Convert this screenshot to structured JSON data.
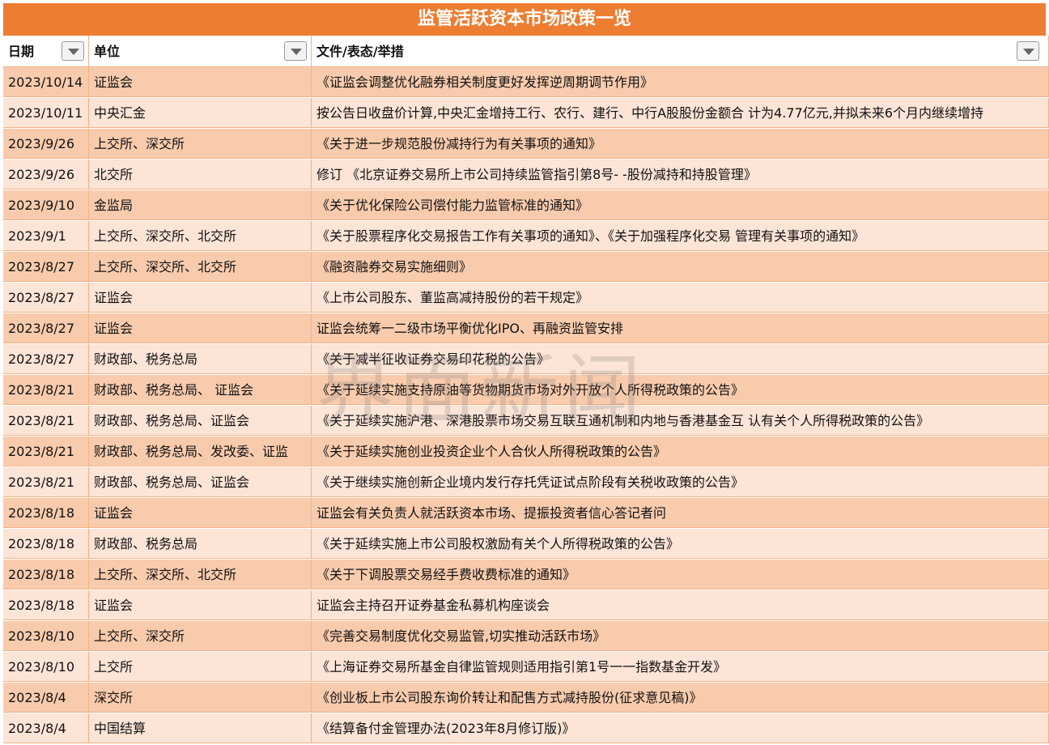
{
  "title": "监管活跃资本市场政策一览",
  "watermark": "界面新闻",
  "headers": [
    "日期",
    "单位",
    "文件/表态/举措"
  ],
  "rows": [
    [
      "2023/10/14",
      "证监会",
      "《证监会调整优化融券相关制度更好发挥逆周期调节作用》"
    ],
    [
      "2023/10/11",
      "中央汇金",
      "按公告日收盘价计算,中央汇金增持工行、农行、建行、中行A股股份金额合 计为4.77亿元,并拟未来6个月内继续增持"
    ],
    [
      "2023/9/26",
      "上交所、深交所",
      "《关于进一步规范股份减持行为有关事项的通知》"
    ],
    [
      "2023/9/26",
      "北交所",
      "修订 《北京证券交易所上市公司持续监管指引第8号- -股份减持和持股管理》"
    ],
    [
      "2023/9/10",
      "金监局",
      "《关于优化保险公司偿付能力监管标准的通知》"
    ],
    [
      "2023/9/1",
      "上交所、深交所、北交所",
      "《关于股票程序化交易报告工作有关事项的通知》、《关于加强程序化交易 管理有关事项的通知》"
    ],
    [
      "2023/8/27",
      "上交所、深交所、北交所",
      "《融资融券交易实施细则》"
    ],
    [
      "2023/8/27",
      "证监会",
      "《上市公司股东、董监高减持股份的若干规定》"
    ],
    [
      "2023/8/27",
      "证监会",
      "证监会统筹一二级市场平衡优化IPO、再融资监管安排"
    ],
    [
      "2023/8/27",
      "财政部、税务总局",
      "《关于减半征收证券交易印花税的公告》"
    ],
    [
      "2023/8/21",
      "财政部、税务总局、 证监会",
      "《关于延续实施支持原油等货物期货市场对外开放个人所得税政策的公告》"
    ],
    [
      "2023/8/21",
      "财政部、税务总局、证监会",
      "《关于延续实施沪港、深港股票市场交易互联互通机制和内地与香港基金互 认有关个人所得税政策的公告》"
    ],
    [
      "2023/8/21",
      "财政部、税务总局、发改委、证监",
      "《关于延续实施创业投资企业个人合伙人所得税政策的公告》"
    ],
    [
      "2023/8/21",
      "财政部、税务总局、证监会",
      "《关于继续实施创新企业境内发行存托凭证试点阶段有关税收政策的公告》"
    ],
    [
      "2023/8/18",
      "证监会",
      "证监会有关负责人就活跃资本市场、提振投资者信心答记者问"
    ],
    [
      "2023/8/18",
      "财政部、税务总局",
      "《关于延续实施上市公司股权激励有关个人所得税政策的公告》"
    ],
    [
      "2023/8/18",
      "上交所、深交所、北交所",
      "《关于下调股票交易经手费收费标准的通知》"
    ],
    [
      "2023/8/18",
      "证监会",
      "证监会主持召开证券基金私募机构座谈会"
    ],
    [
      "2023/8/10",
      "上交所、深交所",
      "《完善交易制度优化交易监管,切实推动活跃市场》"
    ],
    [
      "2023/8/10",
      "上交所",
      "《上海证券交易所基金自律监管规则适用指引第1号一一指数基金开发》"
    ],
    [
      "2023/8/4",
      "深交所",
      "《创业板上市公司股东询价转让和配售方式减持股份(征求意见稿)》"
    ],
    [
      "2023/8/4",
      "中国结算",
      "《结算备付金管理办法(2023年8月修订版)》"
    ]
  ]
}
